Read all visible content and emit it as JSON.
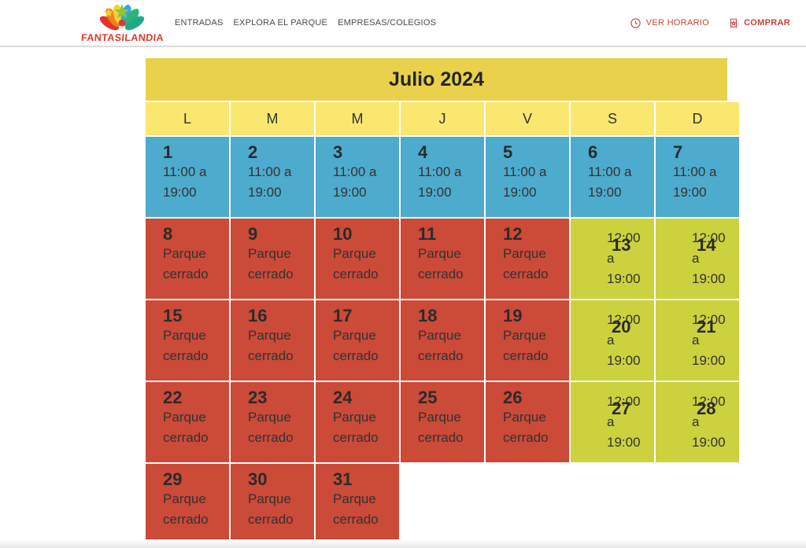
{
  "header": {
    "logo_text": "FANTASILANDIA",
    "nav": [
      {
        "label": "ENTRADAS"
      },
      {
        "label": "EXPLORA EL PARQUE"
      },
      {
        "label": "EMPRESAS/COLEGIOS"
      }
    ],
    "actions": {
      "ver_horario": "VER HORARIO",
      "comprar": "COMPRAR"
    },
    "icons": {
      "ver_horario": "clock-icon",
      "comprar": "ticket-icon"
    }
  },
  "calendar": {
    "title": "Julio 2024",
    "day_headers": [
      "L",
      "M",
      "M",
      "J",
      "V",
      "S",
      "D"
    ],
    "colors": {
      "open_bg": "#4dabcd",
      "closed_bg": "#cb4a38",
      "late_bg": "#ccd13e",
      "title_bg": "#e9d14b",
      "dayhead_bg": "#f9e76f",
      "accent": "#c8453a",
      "cell_text": "#333333"
    },
    "weeks": [
      [
        {
          "day": "1",
          "type": "open",
          "text": "11:00 a 19:00"
        },
        {
          "day": "2",
          "type": "open",
          "text": "11:00 a 19:00"
        },
        {
          "day": "3",
          "type": "open",
          "text": "11:00 a 19:00"
        },
        {
          "day": "4",
          "type": "open",
          "text": "11:00 a 19:00"
        },
        {
          "day": "5",
          "type": "open",
          "text": "11:00 a 19:00"
        },
        {
          "day": "6",
          "type": "open",
          "text": "11:00 a 19:00"
        },
        {
          "day": "7",
          "type": "open",
          "text": "11:00 a 19:00"
        }
      ],
      [
        {
          "day": "8",
          "type": "closed",
          "text": "Parque cerrado"
        },
        {
          "day": "9",
          "type": "closed",
          "text": "Parque cerrado"
        },
        {
          "day": "10",
          "type": "closed",
          "text": "Parque cerrado"
        },
        {
          "day": "11",
          "type": "closed",
          "text": "Parque cerrado"
        },
        {
          "day": "12",
          "type": "closed",
          "text": "Parque cerrado"
        },
        {
          "day": "13",
          "type": "late",
          "text": "12:00 a 19:00"
        },
        {
          "day": "14",
          "type": "late",
          "text": "12:00 a 19:00"
        }
      ],
      [
        {
          "day": "15",
          "type": "closed",
          "text": "Parque cerrado"
        },
        {
          "day": "16",
          "type": "closed",
          "text": "Parque cerrado"
        },
        {
          "day": "17",
          "type": "closed",
          "text": "Parque cerrado"
        },
        {
          "day": "18",
          "type": "closed",
          "text": "Parque cerrado"
        },
        {
          "day": "19",
          "type": "closed",
          "text": "Parque cerrado"
        },
        {
          "day": "20",
          "type": "late",
          "text": "12:00 a 19:00"
        },
        {
          "day": "21",
          "type": "late",
          "text": "12:00 a 19:00"
        }
      ],
      [
        {
          "day": "22",
          "type": "closed",
          "text": "Parque cerrado"
        },
        {
          "day": "23",
          "type": "closed",
          "text": "Parque cerrado"
        },
        {
          "day": "24",
          "type": "closed",
          "text": "Parque cerrado"
        },
        {
          "day": "25",
          "type": "closed",
          "text": "Parque cerrado"
        },
        {
          "day": "26",
          "type": "closed",
          "text": "Parque cerrado"
        },
        {
          "day": "27",
          "type": "late",
          "text": "12:00 a 19:00"
        },
        {
          "day": "28",
          "type": "late",
          "text": "12:00 a 19:00"
        }
      ],
      [
        {
          "day": "29",
          "type": "closed",
          "text": "Parque cerrado"
        },
        {
          "day": "30",
          "type": "closed",
          "text": "Parque cerrado"
        },
        {
          "day": "31",
          "type": "closed",
          "text": "Parque cerrado"
        },
        {
          "type": "empty"
        },
        {
          "type": "empty"
        },
        {
          "type": "empty"
        },
        {
          "type": "empty"
        }
      ]
    ]
  }
}
